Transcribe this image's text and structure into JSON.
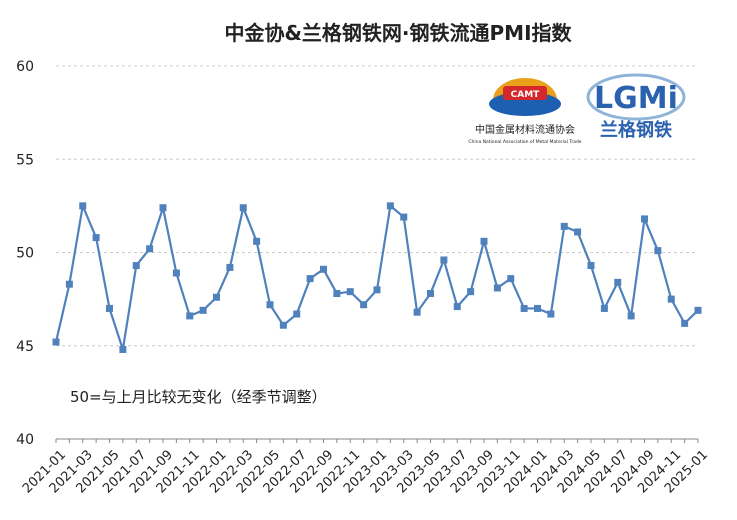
{
  "chart_data": {
    "type": "line",
    "title": "中金协&兰格钢铁网·钢铁流通PMI指数",
    "annotation": "50=与上月比较无变化（经季节调整）",
    "categories": [
      "2021-01",
      null,
      "2021-03",
      null,
      "2021-05",
      null,
      "2021-07",
      null,
      "2021-09",
      null,
      "2021-11",
      null,
      "2022-01",
      null,
      "2022-03",
      null,
      "2022-05",
      null,
      "2022-07",
      null,
      "2022-09",
      null,
      "2022-11",
      null,
      "2023-01",
      null,
      "2023-03",
      null,
      "2023-05",
      null,
      "2023-07",
      null,
      "2023-09",
      null,
      "2023-11",
      null,
      "2024-01",
      null,
      "2024-03",
      null,
      "2024-05",
      null,
      "2024-07",
      null,
      "2024-09",
      null,
      "2024-11",
      null,
      "2025-01"
    ],
    "values": [
      45.2,
      48.3,
      52.5,
      50.8,
      47.0,
      44.8,
      49.3,
      50.2,
      52.4,
      48.9,
      46.6,
      46.9,
      47.6,
      49.2,
      52.4,
      50.6,
      47.2,
      46.1,
      46.7,
      48.6,
      49.1,
      47.8,
      47.9,
      47.2,
      48.0,
      52.5,
      51.9,
      46.8,
      47.8,
      49.6,
      47.1,
      47.9,
      50.6,
      48.1,
      48.6,
      47.0,
      47.0,
      46.7,
      51.4,
      51.1,
      49.3,
      47.0,
      48.4,
      46.6,
      51.8,
      50.1,
      47.5,
      46.2,
      46.9
    ],
    "color": "#4f81bd",
    "ylim": [
      40,
      60
    ],
    "yticks": [
      40,
      45,
      50,
      55,
      60
    ],
    "grid": true
  },
  "logos": {
    "camt_badge": "CAMT",
    "camt_name": "中国金属材料流通协会",
    "camt_english": "China National Association of Metal Material Trade",
    "lgmi_mark": "LGMi",
    "lgmi_name": "兰格钢铁"
  }
}
